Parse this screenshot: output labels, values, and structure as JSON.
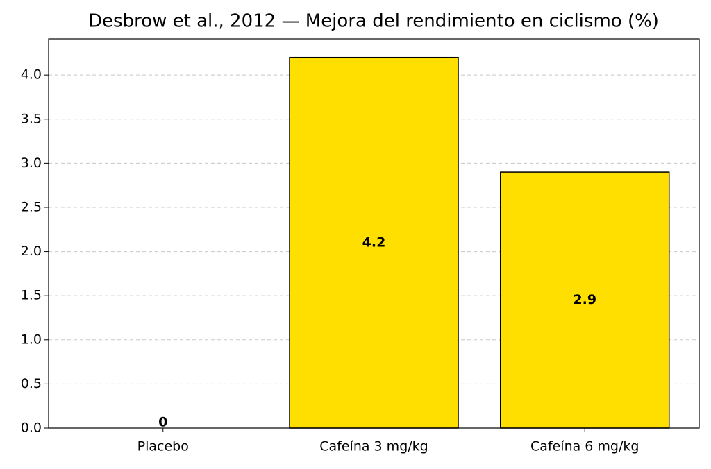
{
  "chart_data": {
    "type": "bar",
    "title": "Desbrow et al., 2012 — Mejora del rendimiento en ciclismo (%)",
    "categories": [
      "Placebo",
      "Cafeína 3 mg/kg",
      "Cafeína 6 mg/kg"
    ],
    "values": [
      0,
      4.2,
      2.9
    ],
    "color": "#ffdf00",
    "edge_color": "#000000",
    "ylim": [
      0,
      4.41
    ],
    "yticks": [
      {
        "value": 0,
        "label": "0.0"
      },
      0.5,
      {
        "value": 1,
        "label": "1.0"
      },
      1.5,
      {
        "value": 2,
        "label": "2.0"
      },
      2.5,
      {
        "value": 3,
        "label": "3.0"
      },
      3.5,
      {
        "value": 4,
        "label": "4.0"
      }
    ],
    "grid": true
  }
}
